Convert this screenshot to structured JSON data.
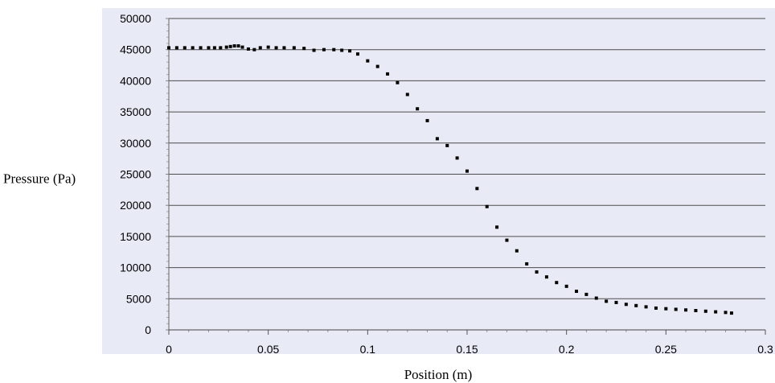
{
  "chart_data": {
    "type": "scatter",
    "title": "",
    "xlabel": "Position (m)",
    "ylabel": "Pressure (Pa)",
    "xlim": [
      0,
      0.3
    ],
    "ylim": [
      0,
      50000
    ],
    "x_ticks": [
      "0",
      "0.05",
      "0.1",
      "0.15",
      "0.2",
      "0.25",
      "0.3"
    ],
    "y_ticks": [
      "0",
      "5000",
      "10000",
      "15000",
      "20000",
      "25000",
      "30000",
      "35000",
      "40000",
      "45000",
      "50000"
    ],
    "grid": "horizontal",
    "legend": "none",
    "colors": {
      "plot_background": "#e8ebf6",
      "outer_background": "#ffffff",
      "gridline": "#4d4d4d",
      "marker": "#000000"
    },
    "series": [
      {
        "x": [
          0,
          0.004,
          0.008,
          0.012,
          0.016,
          0.02,
          0.023,
          0.026,
          0.029,
          0.031,
          0.033,
          0.035,
          0.037,
          0.04,
          0.043,
          0.046,
          0.05,
          0.054,
          0.058,
          0.063,
          0.068,
          0.073,
          0.078,
          0.083,
          0.087,
          0.091,
          0.095,
          0.1,
          0.105,
          0.11,
          0.115,
          0.12,
          0.125,
          0.13,
          0.135,
          0.14,
          0.145,
          0.15,
          0.155,
          0.16,
          0.165,
          0.17,
          0.175,
          0.18,
          0.185,
          0.19,
          0.195,
          0.2,
          0.205,
          0.21,
          0.215,
          0.22,
          0.225,
          0.23,
          0.235,
          0.24,
          0.245,
          0.25,
          0.255,
          0.26,
          0.265,
          0.27,
          0.275,
          0.28,
          0.283
        ],
        "y": [
          45300,
          45300,
          45300,
          45300,
          45300,
          45300,
          45300,
          45300,
          45400,
          45500,
          45600,
          45600,
          45400,
          45100,
          45000,
          45300,
          45400,
          45300,
          45300,
          45300,
          45200,
          44900,
          45000,
          45000,
          44900,
          44800,
          44300,
          43200,
          42300,
          41100,
          39700,
          37800,
          35500,
          33600,
          30700,
          29600,
          27600,
          25500,
          22700,
          19800,
          16500,
          14400,
          12700,
          10600,
          9300,
          8500,
          7600,
          7000,
          6200,
          5700,
          5100,
          4600,
          4400,
          4100,
          3900,
          3700,
          3500,
          3400,
          3300,
          3200,
          3100,
          3000,
          2900,
          2800,
          2700
        ]
      }
    ]
  }
}
